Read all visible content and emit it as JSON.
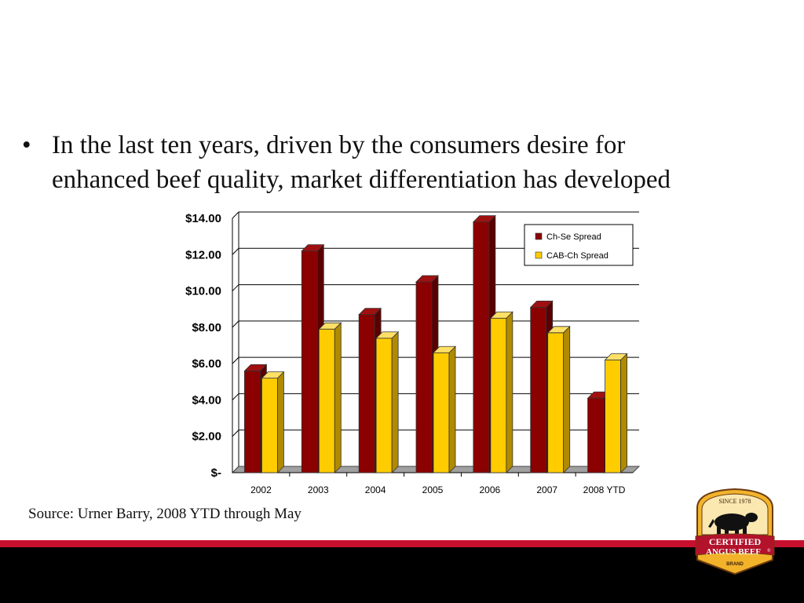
{
  "slide": {
    "bullet_line_1": "In the last ten years, driven by the consumers desire for",
    "bullet_line_2": "enhanced beef quality, market differentiation has developed",
    "source": "Source: Urner Barry, 2008 YTD through May"
  },
  "logo": {
    "since": "SINCE 1978",
    "line1": "CERTIFIED",
    "line2": "ANGUS BEEF",
    "brand": "BRAND",
    "registered": "®"
  },
  "colors": {
    "series1": "#8b0000",
    "series2": "#ffcc00",
    "accent_red": "#c8102e",
    "band_black": "#000000"
  },
  "chart_data": {
    "type": "bar",
    "categories": [
      "2002",
      "2003",
      "2004",
      "2005",
      "2006",
      "2007",
      "2008 YTD"
    ],
    "series": [
      {
        "name": "Ch-Se Spread",
        "values": [
          5.6,
          12.2,
          8.7,
          10.5,
          13.8,
          9.1,
          4.1
        ]
      },
      {
        "name": "CAB-Ch Spread",
        "values": [
          5.2,
          7.9,
          7.4,
          6.6,
          8.5,
          7.7,
          6.2
        ]
      }
    ],
    "y_ticks": [
      "$-",
      "$2.00",
      "$4.00",
      "$6.00",
      "$8.00",
      "$10.00",
      "$12.00",
      "$14.00"
    ],
    "ylim": [
      0,
      14
    ],
    "grid": true,
    "legend_position": "top-right"
  }
}
